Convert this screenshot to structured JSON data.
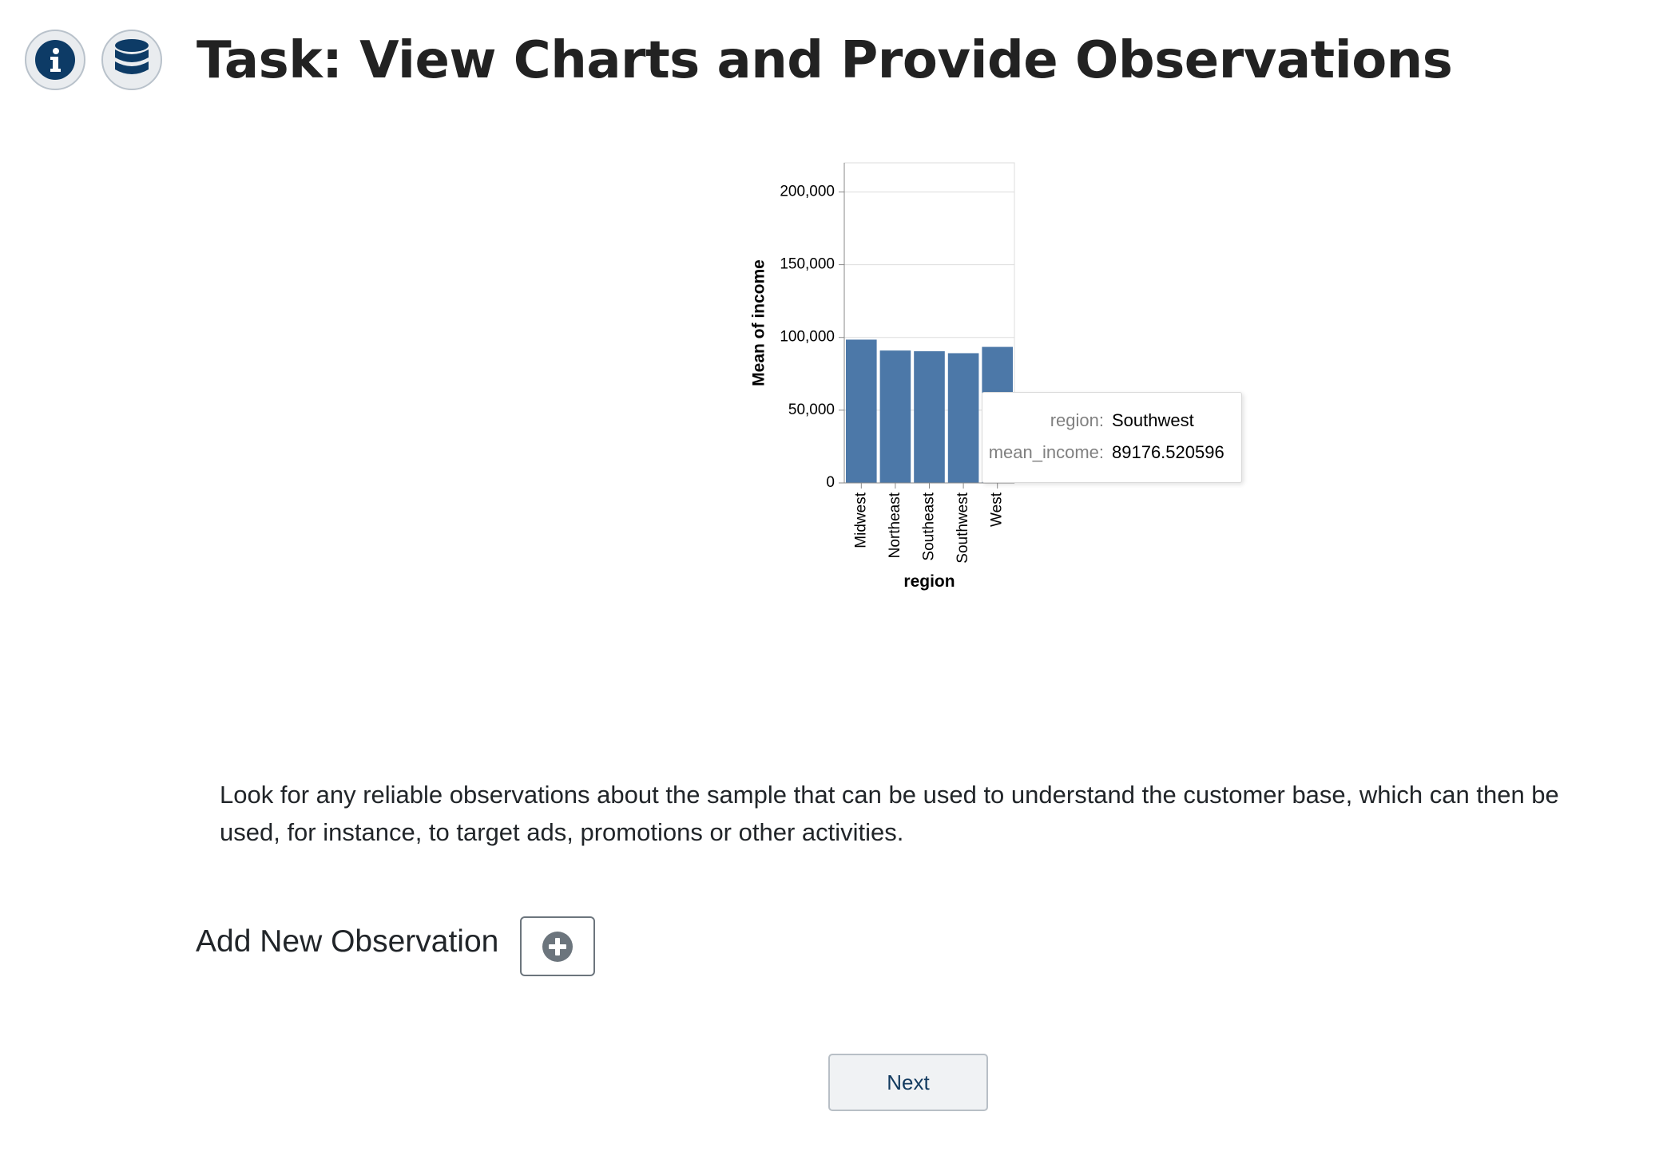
{
  "header": {
    "title": "Task: View Charts and Provide Observations",
    "info_icon": "info-icon",
    "database_icon": "database-icon",
    "icon_color": "#0d3b66"
  },
  "chart_data": {
    "type": "bar",
    "categories": [
      "Midwest",
      "Northeast",
      "Southeast",
      "Southwest",
      "West"
    ],
    "values": [
      98500,
      91000,
      90500,
      89176.520596,
      93500
    ],
    "xlabel": "region",
    "ylabel": "Mean of income",
    "ylim": [
      0,
      220000
    ],
    "yticks": [
      0,
      50000,
      100000,
      150000,
      200000
    ],
    "ytick_labels": [
      "0",
      "50,000",
      "100,000",
      "150,000",
      "200,000"
    ],
    "grid": true,
    "bar_color": "#4c78a8"
  },
  "tooltip": {
    "rows": [
      {
        "key": "region:",
        "value": "Southwest"
      },
      {
        "key": "mean_income:",
        "value": "89176.520596"
      }
    ]
  },
  "instructions": "Look for any reliable observations about the sample that can be used to understand the customer base, which can then be used, for instance, to target ads, promotions or other activities.",
  "observation": {
    "add_label": "Add New Observation",
    "add_icon": "plus-circle-icon"
  },
  "navigation": {
    "next_label": "Next"
  }
}
